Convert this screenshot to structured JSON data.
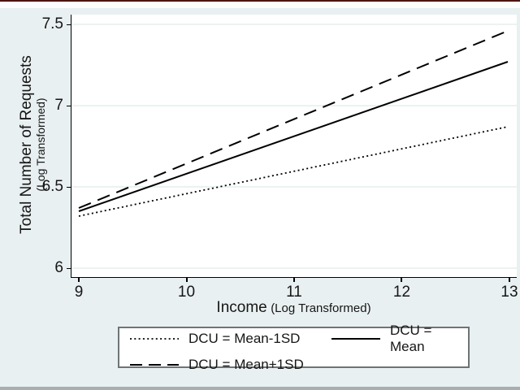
{
  "figure": {
    "y_axis": {
      "title": "Total Number of Requests",
      "subtitle": "(Log Transformed)",
      "tick_labels": [
        "6",
        "6.5",
        "7",
        "7.5"
      ]
    },
    "x_axis": {
      "title": "Income",
      "subtitle": "(Log Transformed)",
      "tick_labels": [
        "9",
        "10",
        "11",
        "12",
        "13"
      ]
    },
    "legend": {
      "entries": [
        {
          "label": "DCU = Mean-1SD",
          "style": "dotted"
        },
        {
          "label": "DCU = Mean",
          "style": "solid"
        },
        {
          "label": "DCU = Mean+1SD",
          "style": "dashed"
        }
      ]
    }
  },
  "chart_data": {
    "type": "line",
    "x": [
      9,
      13
    ],
    "series": [
      {
        "name": "DCU = Mean-1SD",
        "style": "dotted",
        "values": [
          6.32,
          6.87
        ]
      },
      {
        "name": "DCU = Mean",
        "style": "solid",
        "values": [
          6.35,
          7.27
        ]
      },
      {
        "name": "DCU = Mean+1SD",
        "style": "dashed",
        "values": [
          6.37,
          7.46
        ]
      }
    ],
    "title": "",
    "xlabel": "Income (Log Transformed)",
    "ylabel": "Total Number of Requests (Log Transformed)",
    "xlim": [
      9,
      13
    ],
    "ylim": [
      6,
      7.5
    ],
    "xticks": [
      9,
      10,
      11,
      12,
      13
    ],
    "yticks": [
      6,
      6.5,
      7,
      7.5
    ],
    "grid": "horizontal",
    "legend_position": "bottom",
    "colors": {
      "line": "#000000",
      "background": "#e9f0f1",
      "plot_background": "#ffffff",
      "gridline": "#dfe9eb",
      "axis": "#000000"
    }
  }
}
